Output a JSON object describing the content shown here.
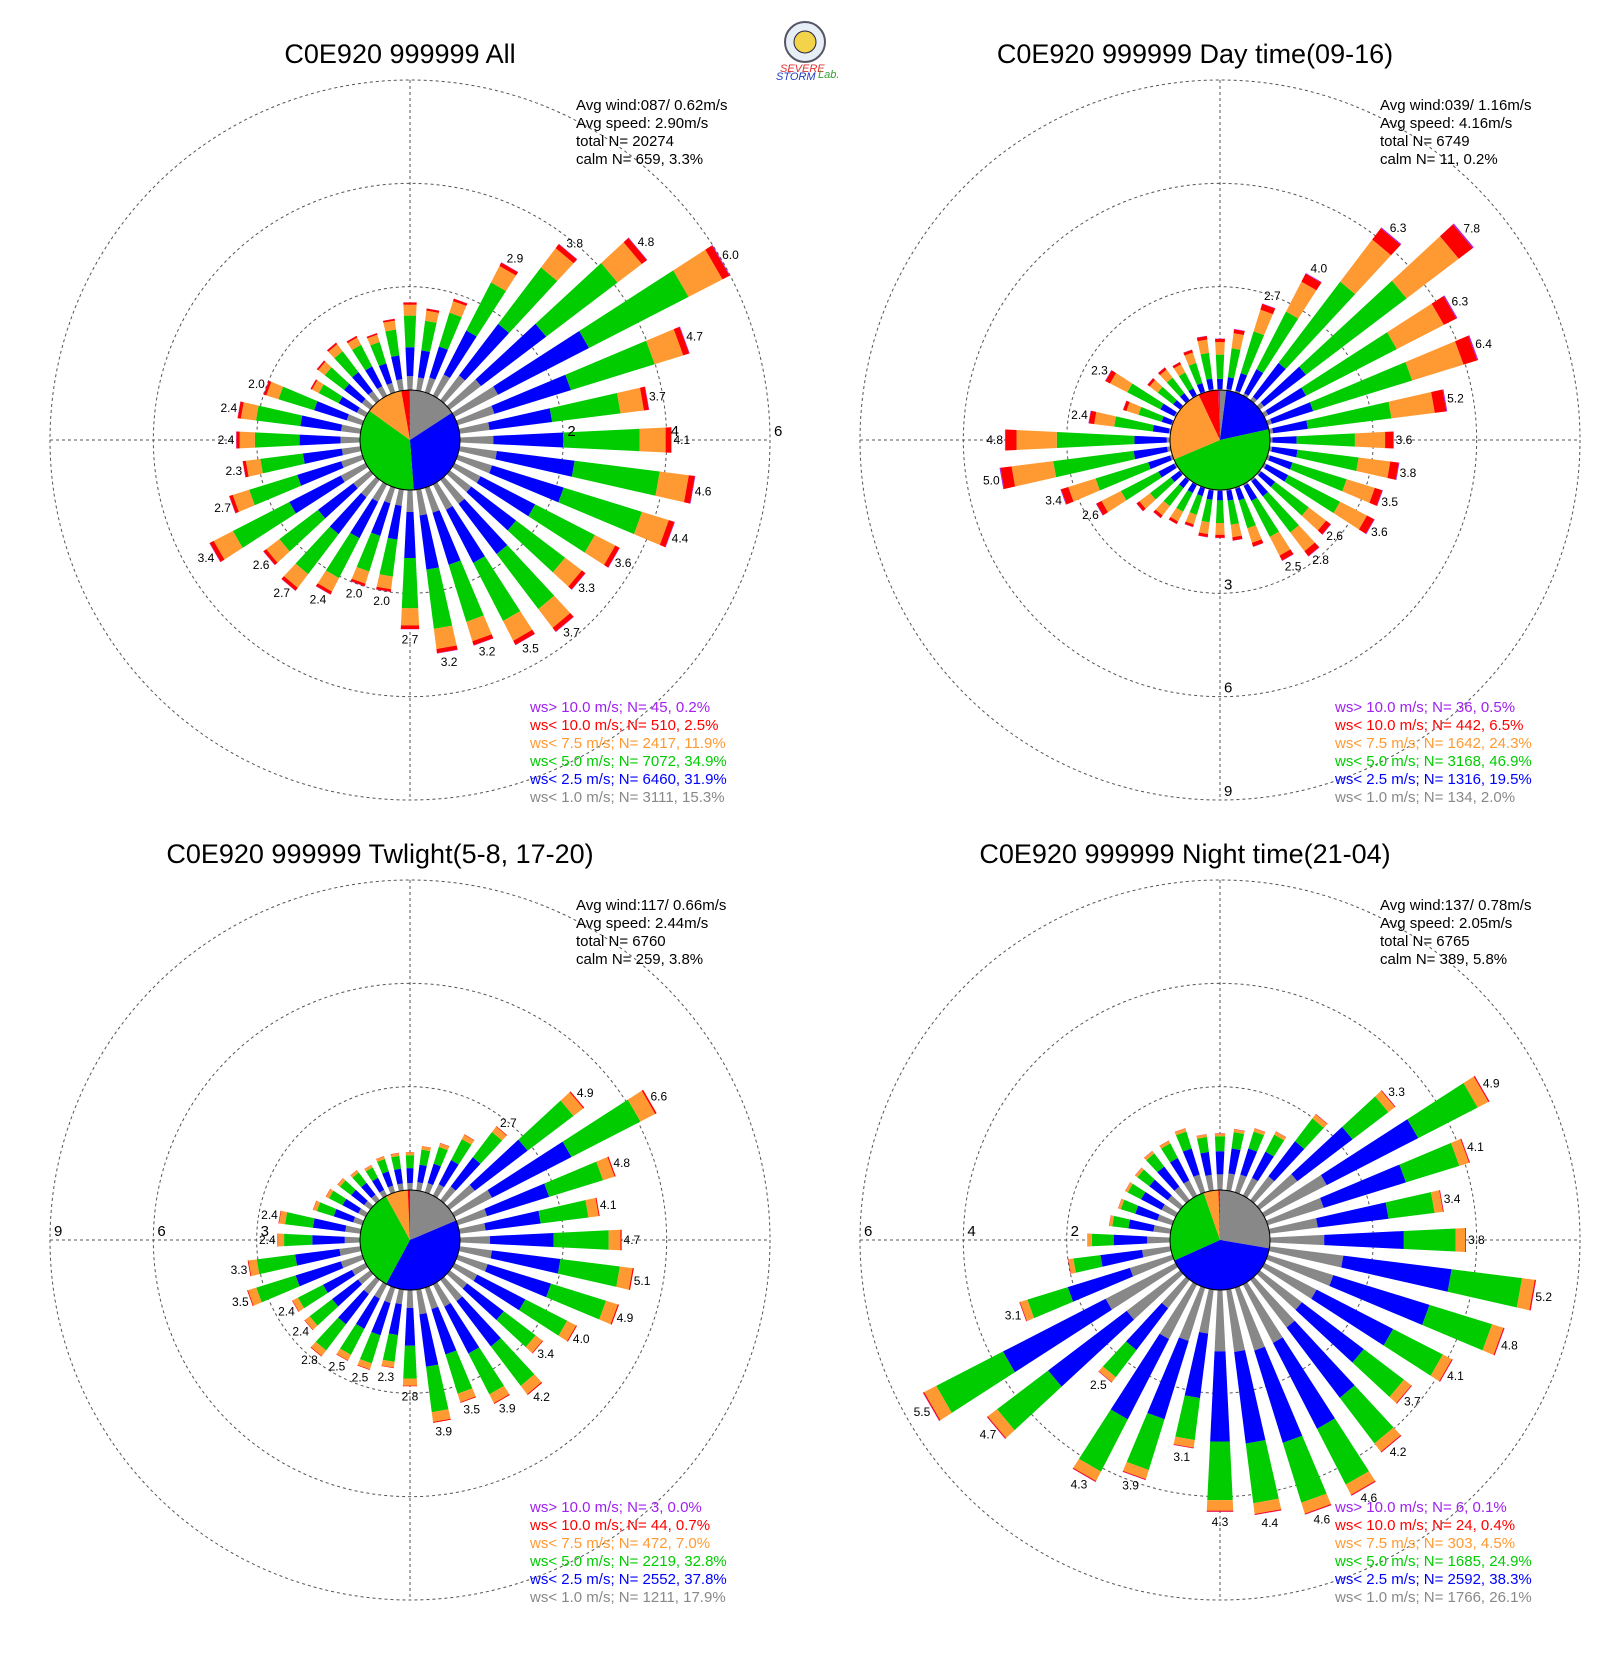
{
  "logo": {
    "text_severe": "SEVERE",
    "text_storm": "STORM",
    "text_lab": "Lab."
  },
  "colors": {
    "gt10": "#a020f0",
    "lt10": "#ff0000",
    "lt75": "#ff9a32",
    "lt5": "#00cc00",
    "lt25": "#0000ff",
    "lt1": "#888888"
  },
  "chart_data": [
    {
      "type": "wind-rose",
      "title": "C0E920 999999 All",
      "info": [
        "Avg wind:087/ 0.62m/s",
        "Avg speed: 2.90m/s",
        "total N=       20274",
        "calm N=    659,   3.3%"
      ],
      "rings": [
        2,
        4,
        6
      ],
      "legend": [
        {
          "text": "ws> 10.0 m/s; N=    45,  0.2%",
          "color": "#a020f0"
        },
        {
          "text": "ws< 10.0 m/s; N=   510,  2.5%",
          "color": "#ff0000"
        },
        {
          "text": "ws<  7.5 m/s; N=  2417, 11.9%",
          "color": "#ff9a32"
        },
        {
          "text": "ws<  5.0 m/s; N=  7072, 34.9%",
          "color": "#00cc00"
        },
        {
          "text": "ws<  2.5 m/s; N=  6460, 31.9%",
          "color": "#0000ff"
        },
        {
          "text": "ws<  1.0 m/s; N=  3111, 15.3%",
          "color": "#888888"
        }
      ],
      "pie": [
        15.3,
        31.9,
        34.9,
        11.9,
        2.5,
        0.2
      ],
      "totals": [
        1.7,
        1.6,
        1.9,
        2.9,
        3.8,
        4.8,
        6.0,
        4.7,
        3.7,
        4.1,
        4.6,
        4.4,
        3.6,
        3.3,
        3.7,
        3.5,
        3.2,
        3.2,
        2.7,
        2.0,
        2.0,
        2.4,
        2.7,
        2.6,
        3.4,
        2.7,
        2.3,
        2.4,
        2.4,
        2.0,
        1.2,
        1.3,
        1.4,
        1.3,
        1.2,
        1.4
      ],
      "labels": [
        null,
        null,
        null,
        "2.9",
        "3.8",
        "4.8",
        "6.0",
        "4.7",
        "3.7",
        "4.1",
        "4.6",
        "4.4",
        "3.6",
        "3.3",
        "3.7",
        "3.5",
        "3.2",
        "3.2",
        "2.7",
        "2.0",
        "2.0",
        "2.4",
        "2.7",
        "2.6",
        "3.4",
        "2.7",
        "2.3",
        "2.4",
        "2.4",
        "2.0",
        null,
        null,
        null,
        null,
        null,
        null
      ]
    },
    {
      "type": "wind-rose",
      "title": "C0E920 999999 Day time(09-16)",
      "info": [
        "Avg wind:039/ 1.16m/s",
        "Avg speed: 4.16m/s",
        "total N=       6749",
        "calm N=     11,   0.2%"
      ],
      "rings": [
        3,
        6,
        9
      ],
      "legend": [
        {
          "text": "ws> 10.0 m/s; N=    36,  0.5%",
          "color": "#a020f0"
        },
        {
          "text": "ws< 10.0 m/s; N=   442,  6.5%",
          "color": "#ff0000"
        },
        {
          "text": "ws<  7.5 m/s; N=  1642, 24.3%",
          "color": "#ff9a32"
        },
        {
          "text": "ws<  5.0 m/s; N=  3168, 46.9%",
          "color": "#00cc00"
        },
        {
          "text": "ws<  2.5 m/s; N=  1316, 19.5%",
          "color": "#0000ff"
        },
        {
          "text": "ws<  1.0 m/s; N=   134,  2.0%",
          "color": "#888888"
        }
      ],
      "pie": [
        2.0,
        19.5,
        46.9,
        24.3,
        6.5,
        0.5
      ],
      "totals": [
        1.5,
        1.8,
        2.7,
        4.0,
        6.3,
        7.8,
        6.3,
        6.4,
        5.2,
        3.6,
        3.8,
        3.5,
        3.6,
        2.6,
        2.8,
        2.5,
        1.8,
        1.5,
        1.4,
        1.4,
        1.2,
        1.3,
        1.4,
        1.6,
        2.6,
        3.4,
        5.0,
        4.8,
        2.4,
        1.5,
        2.3,
        1.2,
        1.2,
        1.1,
        1.3,
        1.6
      ],
      "labels": [
        null,
        null,
        "2.7",
        "4.0",
        "6.3",
        "7.8",
        "6.3",
        "6.4",
        "5.2",
        "3.6",
        "3.8",
        "3.5",
        "3.6",
        "2.6",
        "2.8",
        "2.5",
        null,
        null,
        null,
        null,
        null,
        null,
        null,
        null,
        "2.6",
        "3.4",
        "5.0",
        "4.8",
        "2.4",
        null,
        "2.3",
        null,
        null,
        null,
        null,
        null
      ]
    },
    {
      "type": "wind-rose",
      "title": "C0E920 999999 Twlight(5-8, 17-20)",
      "info": [
        "Avg wind:117/ 0.66m/s",
        "Avg speed: 2.44m/s",
        "total N=       6760",
        "calm N=    259,   3.8%"
      ],
      "rings": [
        3,
        6,
        9
      ],
      "legend": [
        {
          "text": "ws> 10.0 m/s; N=     3,  0.0%",
          "color": "#a020f0"
        },
        {
          "text": "ws< 10.0 m/s; N=    44,  0.7%",
          "color": "#ff0000"
        },
        {
          "text": "ws<  7.5 m/s; N=   472,  7.0%",
          "color": "#ff9a32"
        },
        {
          "text": "ws<  5.0 m/s; N=  2219, 32.8%",
          "color": "#00cc00"
        },
        {
          "text": "ws<  2.5 m/s; N=  2552, 37.8%",
          "color": "#0000ff"
        },
        {
          "text": "ws<  1.0 m/s; N=  1211, 17.9%",
          "color": "#888888"
        }
      ],
      "pie": [
        17.9,
        37.8,
        32.8,
        7.0,
        0.7,
        0.0
      ],
      "totals": [
        1.1,
        1.3,
        1.5,
        2.0,
        2.7,
        4.9,
        6.6,
        4.8,
        4.1,
        4.7,
        5.1,
        4.9,
        4.0,
        3.4,
        4.2,
        3.9,
        3.5,
        3.9,
        2.8,
        2.3,
        2.5,
        2.5,
        2.8,
        2.4,
        2.4,
        3.5,
        3.3,
        2.4,
        2.4,
        1.5,
        1.3,
        1.2,
        1.1,
        1.0,
        1.1,
        1.1
      ],
      "labels": [
        null,
        null,
        null,
        null,
        "2.7",
        "4.9",
        "6.6",
        "4.8",
        "4.1",
        "4.7",
        "5.1",
        "4.9",
        "4.0",
        "3.4",
        "4.2",
        "3.9",
        "3.5",
        "3.9",
        "2.8",
        "2.3",
        "2.5",
        "2.5",
        "2.8",
        "2.4",
        "2.4",
        "3.5",
        "3.3",
        "2.4",
        "2.4",
        null,
        null,
        null,
        null,
        null,
        null,
        null
      ]
    },
    {
      "type": "wind-rose",
      "title": "C0E920 999999 Night time(21-04)",
      "info": [
        "Avg wind:137/ 0.78m/s",
        "Avg speed: 2.05m/s",
        "total N=       6765",
        "calm N=    389,   5.8%"
      ],
      "rings": [
        2,
        4,
        6
      ],
      "legend": [
        {
          "text": "ws> 10.0 m/s; N=     6,  0.1%",
          "color": "#a020f0"
        },
        {
          "text": "ws< 10.0 m/s; N=    24,  0.4%",
          "color": "#ff0000"
        },
        {
          "text": "ws<  7.5 m/s; N=   303,  4.5%",
          "color": "#ff9a32"
        },
        {
          "text": "ws<  5.0 m/s; N=  1685, 24.9%",
          "color": "#00cc00"
        },
        {
          "text": "ws<  2.5 m/s; N=  2592, 38.3%",
          "color": "#0000ff"
        },
        {
          "text": "ws<  1.0 m/s; N=  1766, 26.1%",
          "color": "#888888"
        }
      ],
      "pie": [
        26.1,
        38.3,
        24.9,
        4.5,
        0.4,
        0.1
      ],
      "totals": [
        1.1,
        1.2,
        1.3,
        1.4,
        2.1,
        3.3,
        4.9,
        4.1,
        3.4,
        3.8,
        5.2,
        4.8,
        4.1,
        3.7,
        4.2,
        4.6,
        4.6,
        4.4,
        4.3,
        3.1,
        3.9,
        4.3,
        2.5,
        4.7,
        5.5,
        3.1,
        2.0,
        1.6,
        1.2,
        1.1,
        1.1,
        1.1,
        1.2,
        1.2,
        1.3,
        1.1
      ],
      "labels": [
        null,
        null,
        null,
        null,
        null,
        "3.3",
        "4.9",
        "4.1",
        "3.4",
        "3.8",
        "5.2",
        "4.8",
        "4.1",
        "3.7",
        "4.2",
        "4.6",
        "4.6",
        "4.4",
        "4.3",
        "3.1",
        "3.9",
        "4.3",
        "2.5",
        "4.7",
        "5.5",
        "3.1",
        null,
        null,
        null,
        null,
        null,
        null,
        null,
        null,
        null,
        null
      ]
    }
  ]
}
